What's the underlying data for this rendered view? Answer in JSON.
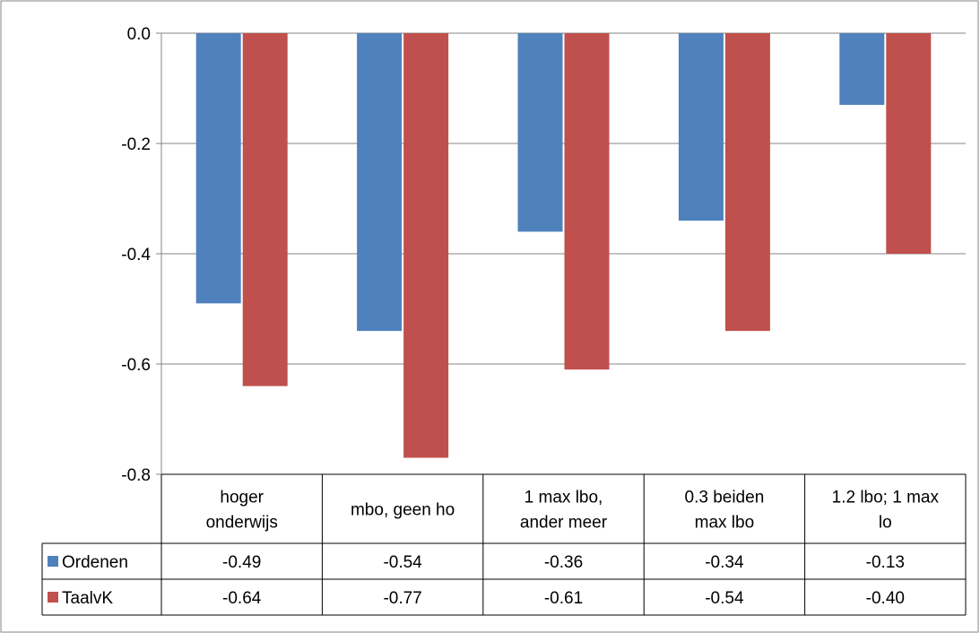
{
  "chart_data": {
    "type": "bar",
    "categories": [
      [
        "hoger",
        "onderwijs"
      ],
      [
        "mbo, geen ho"
      ],
      [
        "1 max lbo,",
        "ander meer"
      ],
      [
        "0.3 beiden",
        "max lbo"
      ],
      [
        "1.2 lbo; 1 max",
        "lo"
      ]
    ],
    "series": [
      {
        "name": "Ordenen",
        "color": "#4F81BD",
        "values": [
          -0.49,
          -0.54,
          -0.36,
          -0.34,
          -0.13
        ],
        "labels": [
          "-0.49",
          "-0.54",
          "-0.36",
          "-0.34",
          "-0.13"
        ]
      },
      {
        "name": "TaalvK",
        "color": "#C0504D",
        "values": [
          -0.64,
          -0.77,
          -0.61,
          -0.54,
          -0.4
        ],
        "labels": [
          "-0.64",
          "-0.77",
          "-0.61",
          "-0.54",
          "-0.40"
        ]
      }
    ],
    "ylim": [
      -0.8,
      0.0
    ],
    "yticks": [
      "0.0",
      "-0.2",
      "-0.4",
      "-0.6",
      "-0.8"
    ],
    "ytick_values": [
      0.0,
      -0.2,
      -0.4,
      -0.6,
      -0.8
    ],
    "grid": true,
    "legend": "data-table",
    "title": "",
    "xlabel": "",
    "ylabel": ""
  }
}
